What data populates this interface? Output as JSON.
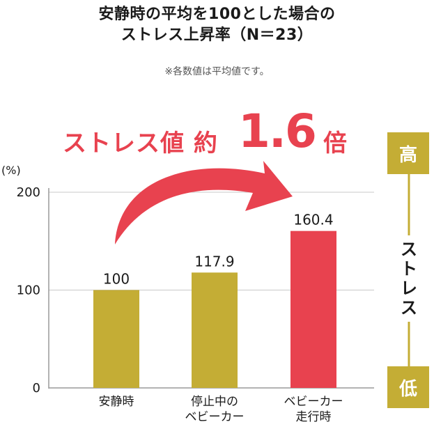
{
  "title_lines": [
    "安静時の平均を100とした場合の",
    "ストレス上昇率（N＝23）"
  ],
  "note": "※各数値は平均値です。",
  "callout": {
    "lead": "ストレス値 約",
    "number": "1.6",
    "tail": "倍"
  },
  "colors": {
    "normal_bar": "#c4ad35",
    "highlight_bar": "#e8424f",
    "arrow": "#e8424f",
    "grid": "#c8c8c8"
  },
  "stress_scale": {
    "high": "高",
    "label": "ストレス",
    "low": "低"
  },
  "chart_data": {
    "type": "bar",
    "ylabel": "(%)",
    "ylim": [
      0,
      200
    ],
    "yticks": [
      0,
      100,
      200
    ],
    "categories": [
      "安静時",
      "停止中の\nベビーカー",
      "ベビーカー\n走行時"
    ],
    "values": [
      100,
      117.9,
      160.4
    ],
    "value_labels": [
      "100",
      "117.9",
      "160.4"
    ],
    "highlight_index": 2,
    "grid": true
  }
}
